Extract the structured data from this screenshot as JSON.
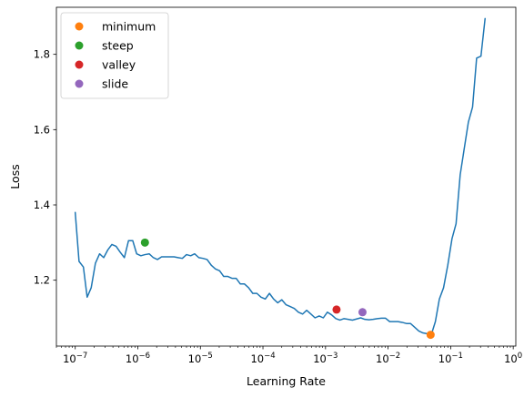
{
  "chart_data": {
    "type": "line",
    "xlabel": "Learning Rate",
    "ylabel": "Loss",
    "xscale": "log",
    "xlim": [
      5e-08,
      1.1
    ],
    "ylim": [
      1.025,
      1.925
    ],
    "x_tick_labels": [
      {
        "value": 1e-07,
        "base": "10",
        "exp": "−7"
      },
      {
        "value": 1e-06,
        "base": "10",
        "exp": "−6"
      },
      {
        "value": 1e-05,
        "base": "10",
        "exp": "−5"
      },
      {
        "value": 0.0001,
        "base": "10",
        "exp": "−4"
      },
      {
        "value": 0.001,
        "base": "10",
        "exp": "−3"
      },
      {
        "value": 0.01,
        "base": "10",
        "exp": "−2"
      },
      {
        "value": 0.1,
        "base": "10",
        "exp": "−1"
      },
      {
        "value": 1,
        "base": "10",
        "exp": "0"
      }
    ],
    "y_ticks": [
      1.2,
      1.4,
      1.6,
      1.8
    ],
    "y_tick_labels": [
      "1.2",
      "1.4",
      "1.6",
      "1.8"
    ],
    "grid": false,
    "legend_position": "top-left",
    "series": [
      {
        "color": "#1f77b4",
        "points": [
          [
            1e-07,
            1.38
          ],
          [
            1.15e-07,
            1.25
          ],
          [
            1.35e-07,
            1.235
          ],
          [
            1.55e-07,
            1.155
          ],
          [
            1.8e-07,
            1.18
          ],
          [
            2.1e-07,
            1.245
          ],
          [
            2.45e-07,
            1.27
          ],
          [
            2.85e-07,
            1.26
          ],
          [
            3.3e-07,
            1.28
          ],
          [
            3.85e-07,
            1.295
          ],
          [
            4.5e-07,
            1.29
          ],
          [
            5.2e-07,
            1.275
          ],
          [
            6.1e-07,
            1.26
          ],
          [
            7.1e-07,
            1.305
          ],
          [
            8.3e-07,
            1.305
          ],
          [
            9.6e-07,
            1.27
          ],
          [
            1.12e-06,
            1.265
          ],
          [
            1.3e-06,
            1.268
          ],
          [
            1.52e-06,
            1.27
          ],
          [
            1.77e-06,
            1.26
          ],
          [
            2.06e-06,
            1.255
          ],
          [
            2.4e-06,
            1.262
          ],
          [
            2.8e-06,
            1.262
          ],
          [
            3.25e-06,
            1.262
          ],
          [
            3.8e-06,
            1.262
          ],
          [
            4.4e-06,
            1.26
          ],
          [
            5.15e-06,
            1.258
          ],
          [
            6e-06,
            1.268
          ],
          [
            7e-06,
            1.265
          ],
          [
            8.1e-06,
            1.27
          ],
          [
            9.45e-06,
            1.26
          ],
          [
            1.1e-05,
            1.258
          ],
          [
            1.28e-05,
            1.255
          ],
          [
            1.49e-05,
            1.24
          ],
          [
            1.74e-05,
            1.23
          ],
          [
            2.03e-05,
            1.225
          ],
          [
            2.36e-05,
            1.21
          ],
          [
            2.75e-05,
            1.21
          ],
          [
            3.2e-05,
            1.205
          ],
          [
            3.73e-05,
            1.205
          ],
          [
            4.35e-05,
            1.19
          ],
          [
            5.07e-05,
            1.19
          ],
          [
            5.9e-05,
            1.18
          ],
          [
            6.87e-05,
            1.165
          ],
          [
            8e-05,
            1.165
          ],
          [
            9.32e-05,
            1.155
          ],
          [
            0.000109,
            1.15
          ],
          [
            0.000127,
            1.165
          ],
          [
            0.000148,
            1.15
          ],
          [
            0.000172,
            1.14
          ],
          [
            0.0002,
            1.148
          ],
          [
            0.000233,
            1.135
          ],
          [
            0.000272,
            1.13
          ],
          [
            0.000317,
            1.125
          ],
          [
            0.000369,
            1.115
          ],
          [
            0.00043,
            1.11
          ],
          [
            0.0005,
            1.12
          ],
          [
            0.000584,
            1.11
          ],
          [
            0.00068,
            1.1
          ],
          [
            0.000792,
            1.105
          ],
          [
            0.000922,
            1.1
          ],
          [
            0.00107,
            1.115
          ],
          [
            0.00125,
            1.108
          ],
          [
            0.00146,
            1.098
          ],
          [
            0.0017,
            1.094
          ],
          [
            0.00198,
            1.098
          ],
          [
            0.0023,
            1.096
          ],
          [
            0.00269,
            1.094
          ],
          [
            0.00313,
            1.097
          ],
          [
            0.00365,
            1.1
          ],
          [
            0.00425,
            1.096
          ],
          [
            0.00495,
            1.095
          ],
          [
            0.00577,
            1.096
          ],
          [
            0.00672,
            1.098
          ],
          [
            0.00783,
            1.099
          ],
          [
            0.00912,
            1.099
          ],
          [
            0.0106,
            1.09
          ],
          [
            0.0124,
            1.09
          ],
          [
            0.0144,
            1.09
          ],
          [
            0.0168,
            1.088
          ],
          [
            0.0196,
            1.085
          ],
          [
            0.0228,
            1.085
          ],
          [
            0.0266,
            1.075
          ],
          [
            0.031,
            1.065
          ],
          [
            0.036,
            1.06
          ],
          [
            0.042,
            1.058
          ],
          [
            0.049,
            1.055
          ],
          [
            0.057,
            1.09
          ],
          [
            0.066,
            1.15
          ],
          [
            0.077,
            1.18
          ],
          [
            0.09,
            1.24
          ],
          [
            0.105,
            1.31
          ],
          [
            0.122,
            1.35
          ],
          [
            0.142,
            1.48
          ],
          [
            0.165,
            1.55
          ],
          [
            0.192,
            1.62
          ],
          [
            0.224,
            1.66
          ],
          [
            0.26,
            1.79
          ],
          [
            0.305,
            1.795
          ],
          [
            0.355,
            1.895
          ]
        ]
      }
    ],
    "markers": [
      {
        "name": "minimum",
        "color": "#ff7f0e",
        "x": 0.0478,
        "y": 1.055
      },
      {
        "name": "steep",
        "color": "#2ca02c",
        "x": 1.3e-06,
        "y": 1.3
      },
      {
        "name": "valley",
        "color": "#d62728",
        "x": 0.0015,
        "y": 1.122
      },
      {
        "name": "slide",
        "color": "#9467bd",
        "x": 0.0039,
        "y": 1.115
      }
    ]
  }
}
